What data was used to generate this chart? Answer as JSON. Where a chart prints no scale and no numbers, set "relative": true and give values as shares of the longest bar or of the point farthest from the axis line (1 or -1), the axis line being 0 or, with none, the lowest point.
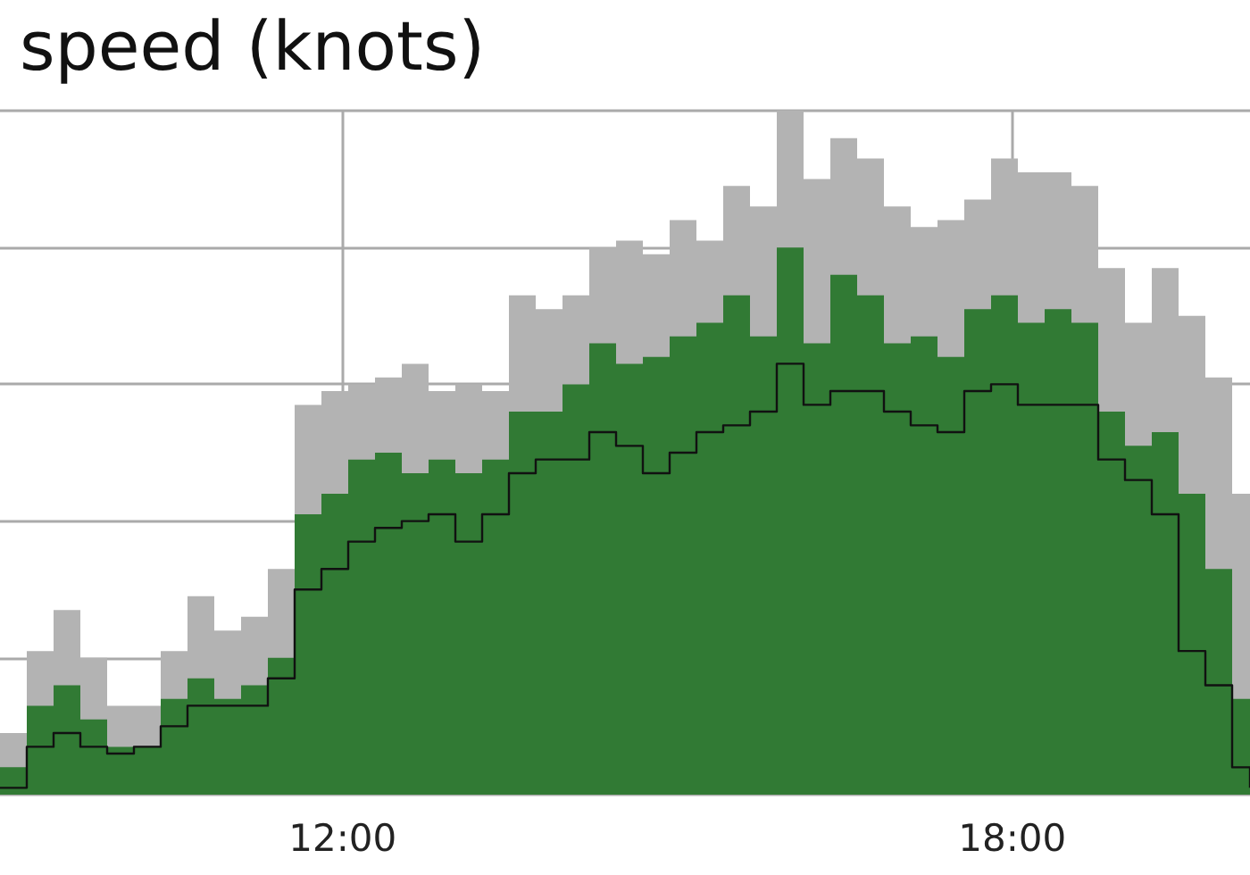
{
  "chart_data": {
    "type": "step",
    "title": "speed (knots)",
    "relative": true,
    "grid": true,
    "xlim": [
      8.93,
      20.13
    ],
    "xticks": [
      {
        "value": 12,
        "label": "12:00"
      },
      {
        "value": 18,
        "label": "18:00"
      }
    ],
    "x": [
      8.93,
      9.17,
      9.41,
      9.65,
      9.89,
      10.13,
      10.37,
      10.61,
      10.85,
      11.09,
      11.33,
      11.57,
      11.81,
      12.05,
      12.29,
      12.53,
      12.77,
      13.01,
      13.25,
      13.49,
      13.73,
      13.97,
      14.21,
      14.45,
      14.69,
      14.93,
      15.17,
      15.41,
      15.65,
      15.89,
      16.13,
      16.37,
      16.61,
      16.85,
      17.09,
      17.33,
      17.57,
      17.81,
      18.05,
      18.29,
      18.53,
      18.77,
      19.01,
      19.25,
      19.49,
      19.73,
      19.97,
      20.13
    ],
    "series": [
      {
        "type": "area",
        "color": "#b3b3b3",
        "values": [
          0.09,
          0.21,
          0.27,
          0.2,
          0.13,
          0.13,
          0.21,
          0.29,
          0.24,
          0.26,
          0.33,
          0.57,
          0.59,
          0.6,
          0.61,
          0.63,
          0.59,
          0.6,
          0.59,
          0.73,
          0.71,
          0.73,
          0.8,
          0.81,
          0.79,
          0.84,
          0.81,
          0.89,
          0.86,
          1.0,
          0.9,
          0.96,
          0.93,
          0.86,
          0.83,
          0.84,
          0.87,
          0.93,
          0.91,
          0.91,
          0.89,
          0.77,
          0.69,
          0.77,
          0.7,
          0.61,
          0.44,
          0.3
        ]
      },
      {
        "type": "area",
        "color": "#317a34",
        "values": [
          0.04,
          0.13,
          0.16,
          0.11,
          0.07,
          0.07,
          0.14,
          0.17,
          0.14,
          0.16,
          0.2,
          0.41,
          0.44,
          0.49,
          0.5,
          0.47,
          0.49,
          0.47,
          0.49,
          0.56,
          0.56,
          0.6,
          0.66,
          0.63,
          0.64,
          0.67,
          0.69,
          0.73,
          0.67,
          0.8,
          0.66,
          0.76,
          0.73,
          0.66,
          0.67,
          0.64,
          0.71,
          0.73,
          0.69,
          0.71,
          0.69,
          0.56,
          0.51,
          0.53,
          0.44,
          0.33,
          0.14,
          0.04
        ]
      },
      {
        "type": "step",
        "color": "#111111",
        "values": [
          0.01,
          0.07,
          0.09,
          0.07,
          0.06,
          0.07,
          0.1,
          0.13,
          0.13,
          0.13,
          0.17,
          0.3,
          0.33,
          0.37,
          0.39,
          0.4,
          0.41,
          0.37,
          0.41,
          0.47,
          0.49,
          0.49,
          0.53,
          0.51,
          0.47,
          0.5,
          0.53,
          0.54,
          0.56,
          0.63,
          0.57,
          0.59,
          0.59,
          0.56,
          0.54,
          0.53,
          0.59,
          0.6,
          0.57,
          0.57,
          0.57,
          0.49,
          0.46,
          0.41,
          0.21,
          0.16,
          0.04,
          0.01
        ]
      }
    ]
  }
}
